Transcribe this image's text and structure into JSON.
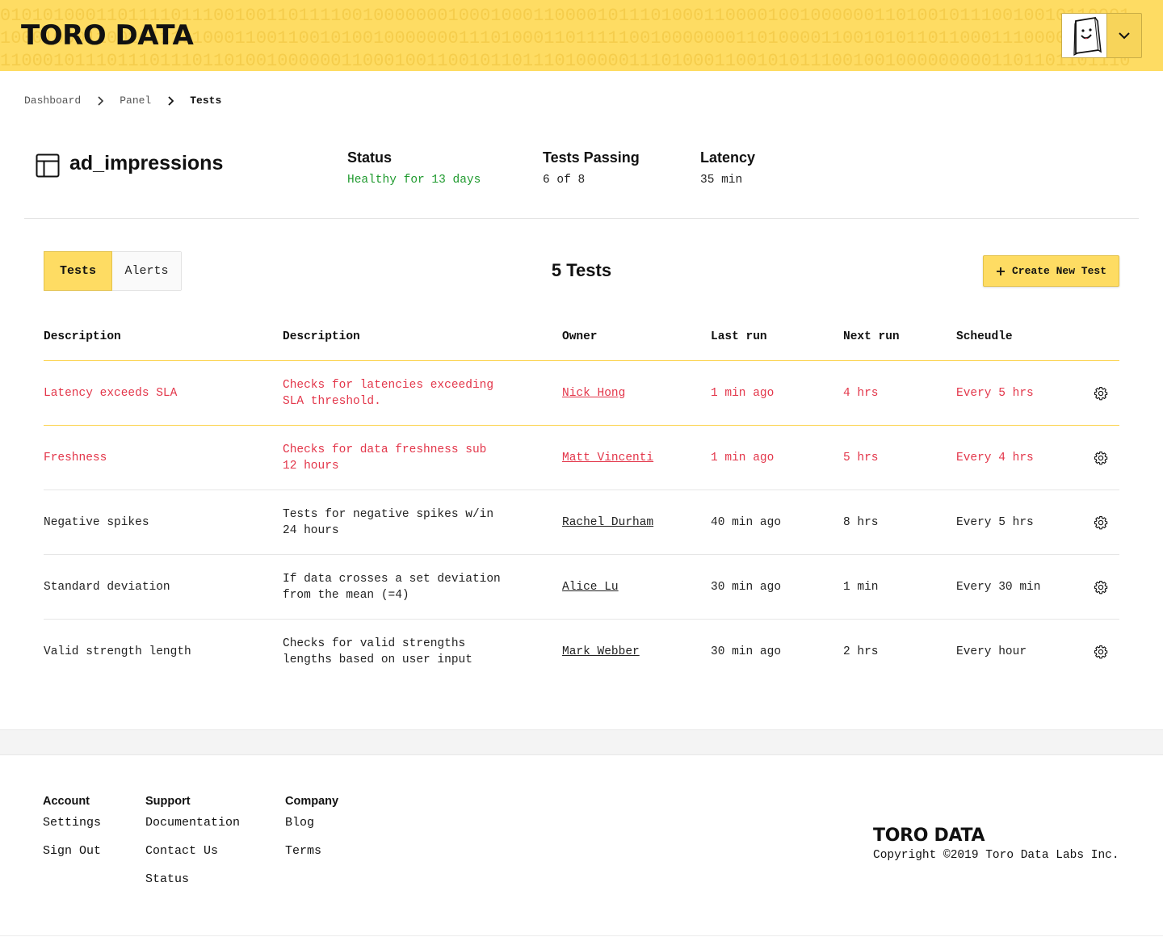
{
  "header": {
    "logo": "TORO DATA",
    "binary_rows": [
      "0101010001101111011100100110111100100000001000100011000010111010001100001001000000110100101110010010110001",
      "1000100011001011101000110011001010010000000111010001101111100100000001101000011001010110110001110000000111",
      "1100010111011101110110100100000011000100110010110111010000011101000110010101110010010000000001101101101110"
    ],
    "user_menu_icon": "chevron-down-icon"
  },
  "breadcrumb": {
    "items": [
      "Dashboard",
      "Panel",
      "Tests"
    ]
  },
  "summary": {
    "table_name": "ad_impressions",
    "status_label": "Status",
    "status_value": "Healthy for 13 days",
    "tests_passing_label": "Tests Passing",
    "tests_passing_value": "6 of 8",
    "latency_label": "Latency",
    "latency_value": "35 min",
    "colors": {
      "healthy": "#1f9a2e",
      "accent": "#fedc63",
      "alert": "#e3364a"
    }
  },
  "tabs": [
    {
      "label": "Tests",
      "active": true
    },
    {
      "label": "Alerts",
      "active": false
    }
  ],
  "tests_count": "5 Tests",
  "create_button": "Create New Test",
  "table": {
    "headers": [
      "Description",
      "Description",
      "Owner",
      "Last run",
      "Next run",
      "Scheudle"
    ],
    "rows": [
      {
        "name": "Latency exceeds SLA",
        "description_1": "Checks for latencies exceeding",
        "description_2": "SLA threshold.",
        "owner": "Nick Hong",
        "last_run": "1 min ago",
        "next_run": "4 hrs",
        "schedule": "Every 5 hrs",
        "alert": true
      },
      {
        "name": "Freshness",
        "description_1": "Checks for data freshness sub",
        "description_2": "12 hours",
        "owner": "Matt Vincenti",
        "last_run": "1 min ago",
        "next_run": "5 hrs",
        "schedule": "Every 4 hrs",
        "alert": true
      },
      {
        "name": "Negative spikes",
        "description_1": "Tests for negative spikes w/in",
        "description_2": "24 hours",
        "owner": "Rachel Durham",
        "last_run": "40 min ago",
        "next_run": "8 hrs",
        "schedule": "Every 5 hrs",
        "alert": false
      },
      {
        "name": "Standard deviation",
        "description_1": "If data crosses a set deviation",
        "description_2": "from the mean (=4)",
        "owner": "Alice Lu",
        "last_run": "30 min ago",
        "next_run": "1 min",
        "schedule": "Every 30 min",
        "alert": false
      },
      {
        "name": "Valid strength length",
        "description_1": "Checks for valid strengths",
        "description_2": "lengths based on user input",
        "owner": "Mark Webber",
        "last_run": "30 min ago",
        "next_run": "2 hrs",
        "schedule": "Every hour",
        "alert": false
      }
    ]
  },
  "footer": {
    "account": {
      "heading": "Account",
      "links": [
        "Settings",
        "Sign Out"
      ]
    },
    "support": {
      "heading": "Support",
      "links": [
        "Documentation",
        "Contact Us",
        "Status"
      ]
    },
    "company": {
      "heading": "Company",
      "links": [
        "Blog",
        "Terms"
      ]
    },
    "logo": "TORO DATA",
    "copyright": "Copyright ©2019 Toro Data Labs Inc."
  }
}
